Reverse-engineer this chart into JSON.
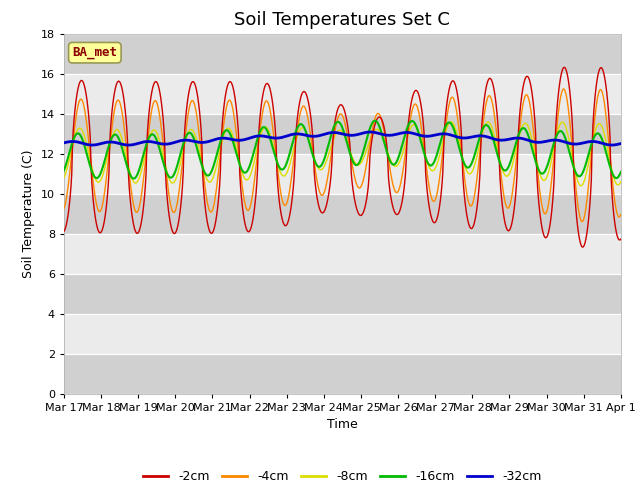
{
  "title": "Soil Temperatures Set C",
  "xlabel": "Time",
  "ylabel": "Soil Temperature (C)",
  "ylim": [
    0,
    18
  ],
  "yticks": [
    0,
    2,
    4,
    6,
    8,
    10,
    12,
    14,
    16,
    18
  ],
  "plot_bg_color": "#e8e8e8",
  "fig_bg_color": "#ffffff",
  "band_color_dark": "#d0d0d0",
  "band_color_light": "#ebebeb",
  "legend_label": "BA_met",
  "series_colors": {
    "-2cm": "#cc0000",
    "-4cm": "#ff8800",
    "-8cm": "#dddd00",
    "-16cm": "#00bb00",
    "-32cm": "#0000cc"
  },
  "n_points": 720,
  "title_fontsize": 13,
  "axis_fontsize": 9,
  "tick_fontsize": 8,
  "line_widths": {
    "-2cm": 1.0,
    "-4cm": 1.0,
    "-8cm": 1.0,
    "-16cm": 1.5,
    "-32cm": 2.0
  }
}
